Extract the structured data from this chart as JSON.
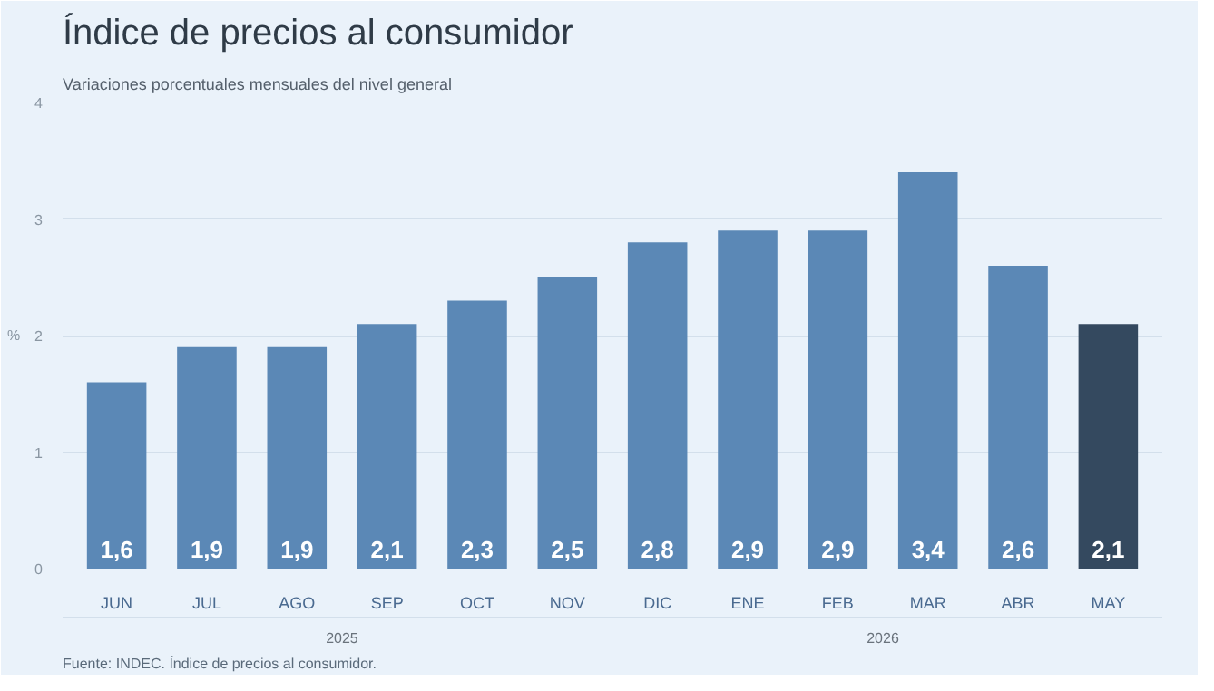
{
  "chart_data": {
    "type": "bar",
    "title": "Índice de precios al consumidor",
    "subtitle": "Variaciones porcentuales mensuales del nivel general",
    "ylabel": "%",
    "categories": [
      "JUN",
      "JUL",
      "AGO",
      "SEP",
      "OCT",
      "NOV",
      "DIC",
      "ENE",
      "FEB",
      "MAR",
      "ABR",
      "MAY"
    ],
    "values": [
      1.6,
      1.9,
      1.9,
      2.1,
      2.3,
      2.5,
      2.8,
      2.9,
      2.9,
      3.4,
      2.6,
      2.1
    ],
    "value_labels": [
      "1,6",
      "1,9",
      "1,9",
      "2,1",
      "2,3",
      "2,5",
      "2,8",
      "2,9",
      "2,9",
      "3,4",
      "2,6",
      "2,1"
    ],
    "colors": [
      "#5b88b6",
      "#5b88b6",
      "#5b88b6",
      "#5b88b6",
      "#5b88b6",
      "#5b88b6",
      "#5b88b6",
      "#5b88b6",
      "#5b88b6",
      "#5b88b6",
      "#5b88b6",
      "#34495f"
    ],
    "ylim": [
      0,
      4
    ],
    "yticks": [
      0,
      1,
      2,
      3,
      4
    ],
    "grid": "y",
    "annotations": [
      "2025",
      "2026",
      "Fuente: INDEC. Índice de precios al consumidor."
    ]
  }
}
